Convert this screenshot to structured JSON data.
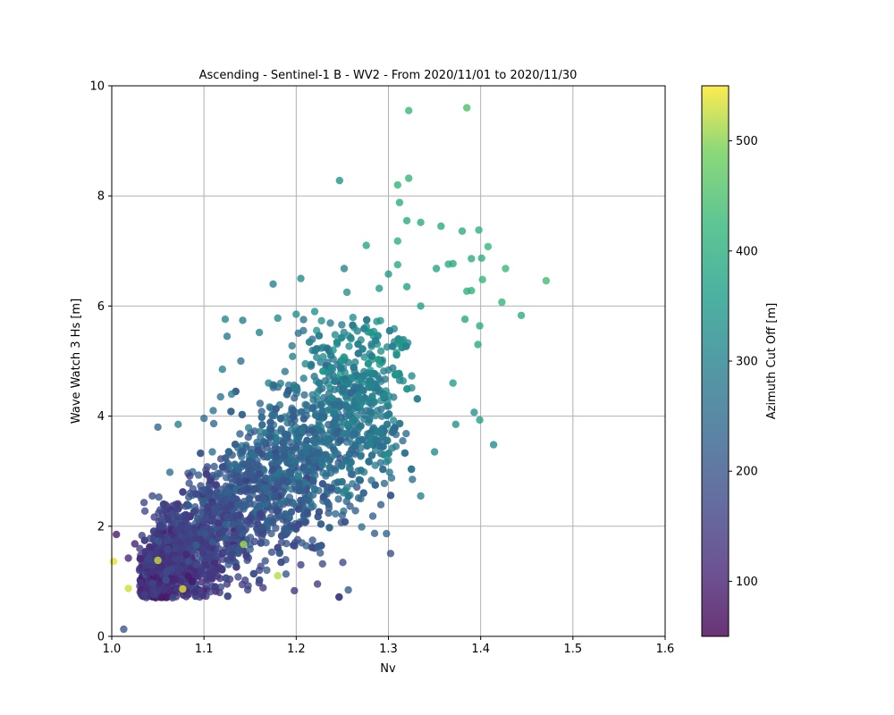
{
  "chart_data": {
    "type": "scatter",
    "title": "Ascending - Sentinel-1 B - WV2 - From 2020/11/01 to 2020/11/30",
    "xlabel": "Nv",
    "ylabel": "Wave Watch 3 Hs [m]",
    "xlim": [
      1.0,
      1.6
    ],
    "ylim": [
      0,
      10
    ],
    "xticks": [
      "1.0",
      "1.1",
      "1.2",
      "1.3",
      "1.4",
      "1.5",
      "1.6"
    ],
    "yticks": [
      "0",
      "2",
      "4",
      "6",
      "8",
      "10"
    ],
    "grid": true,
    "colorbar": {
      "label": "Azimuth Cut Off [m]",
      "range": [
        50,
        550
      ],
      "ticks": [
        "100",
        "200",
        "300",
        "400",
        "500"
      ],
      "colormap": "viridis"
    },
    "points": [
      [
        1.385,
        9.6,
        450
      ],
      [
        1.322,
        9.55,
        430
      ],
      [
        1.322,
        8.32,
        420
      ],
      [
        1.31,
        8.2,
        415
      ],
      [
        1.247,
        8.28,
        340
      ],
      [
        1.312,
        7.88,
        400
      ],
      [
        1.32,
        7.55,
        395
      ],
      [
        1.335,
        7.52,
        390
      ],
      [
        1.398,
        7.38,
        410
      ],
      [
        1.38,
        7.36,
        400
      ],
      [
        1.357,
        7.45,
        395
      ],
      [
        1.408,
        7.08,
        420
      ],
      [
        1.31,
        7.18,
        405
      ],
      [
        1.276,
        7.1,
        380
      ],
      [
        1.401,
        6.87,
        405
      ],
      [
        1.39,
        6.86,
        400
      ],
      [
        1.365,
        6.76,
        395
      ],
      [
        1.37,
        6.77,
        390
      ],
      [
        1.427,
        6.68,
        430
      ],
      [
        1.471,
        6.46,
        440
      ],
      [
        1.402,
        6.48,
        420
      ],
      [
        1.385,
        6.27,
        405
      ],
      [
        1.39,
        6.28,
        410
      ],
      [
        1.423,
        6.07,
        420
      ],
      [
        1.444,
        5.83,
        400
      ],
      [
        1.352,
        6.68,
        380
      ],
      [
        1.31,
        6.75,
        390
      ],
      [
        1.32,
        6.35,
        370
      ],
      [
        1.252,
        6.68,
        310
      ],
      [
        1.205,
        6.5,
        320
      ],
      [
        1.175,
        6.4,
        300
      ],
      [
        1.255,
        6.25,
        330
      ],
      [
        1.3,
        6.58,
        350
      ],
      [
        1.29,
        6.32,
        360
      ],
      [
        1.335,
        6.0,
        365
      ],
      [
        1.383,
        5.76,
        385
      ],
      [
        1.399,
        5.64,
        400
      ],
      [
        1.397,
        5.3,
        390
      ],
      [
        1.399,
        3.93,
        370
      ],
      [
        1.414,
        3.48,
        320
      ],
      [
        1.373,
        3.85,
        330
      ],
      [
        1.393,
        4.07,
        340
      ],
      [
        1.37,
        4.6,
        360
      ],
      [
        1.35,
        3.35,
        320
      ],
      [
        1.335,
        2.55,
        300
      ],
      [
        1.326,
        2.85,
        260
      ],
      [
        1.285,
        1.87,
        220
      ],
      [
        1.223,
        0.95,
        150
      ],
      [
        1.198,
        0.83,
        140
      ],
      [
        1.18,
        1.1,
        520
      ],
      [
        1.143,
        1.67,
        510
      ],
      [
        1.05,
        1.38,
        530
      ],
      [
        1.077,
        0.86,
        540
      ],
      [
        1.018,
        0.87,
        530
      ],
      [
        1.002,
        1.36,
        540
      ],
      [
        1.013,
        0.13,
        200
      ],
      [
        1.005,
        1.85,
        90
      ],
      [
        1.025,
        1.68,
        100
      ],
      [
        1.018,
        1.42,
        110
      ],
      [
        1.03,
        1.2,
        130
      ],
      [
        1.05,
        3.8,
        240
      ],
      [
        1.072,
        3.85,
        300
      ],
      [
        1.063,
        2.98,
        260
      ],
      [
        1.1,
        3.96,
        250
      ],
      [
        1.118,
        4.35,
        270
      ],
      [
        1.12,
        4.85,
        300
      ],
      [
        1.14,
        5.0,
        260
      ],
      [
        1.142,
        5.74,
        290
      ],
      [
        1.123,
        5.76,
        310
      ],
      [
        1.125,
        5.45,
        280
      ],
      [
        1.16,
        5.52,
        300
      ],
      [
        1.18,
        5.78,
        320
      ],
      [
        1.2,
        5.85,
        330
      ],
      [
        1.22,
        5.9,
        340
      ],
      [
        1.24,
        5.2,
        340
      ],
      [
        1.233,
        4.1,
        290
      ],
      [
        1.262,
        3.9,
        300
      ],
      [
        1.28,
        3.5,
        300
      ],
      [
        1.3,
        3.2,
        310
      ],
      [
        1.27,
        2.5,
        250
      ],
      [
        1.25,
        2.2,
        230
      ],
      [
        1.205,
        1.3,
        160
      ],
      [
        1.16,
        1.2,
        170
      ],
      [
        1.125,
        0.95,
        140
      ],
      [
        1.09,
        0.8,
        120
      ],
      [
        1.066,
        0.7,
        170
      ],
      [
        1.045,
        0.85,
        150
      ],
      [
        1.035,
        2.43,
        170
      ],
      [
        1.044,
        2.55,
        180
      ],
      [
        1.057,
        2.3,
        160
      ],
      [
        1.11,
        4.1,
        270
      ],
      [
        1.13,
        4.4,
        290
      ],
      [
        1.17,
        4.6,
        300
      ],
      [
        1.21,
        4.95,
        320
      ],
      [
        1.26,
        4.7,
        330
      ]
    ],
    "cloud_note_omitted": true
  }
}
